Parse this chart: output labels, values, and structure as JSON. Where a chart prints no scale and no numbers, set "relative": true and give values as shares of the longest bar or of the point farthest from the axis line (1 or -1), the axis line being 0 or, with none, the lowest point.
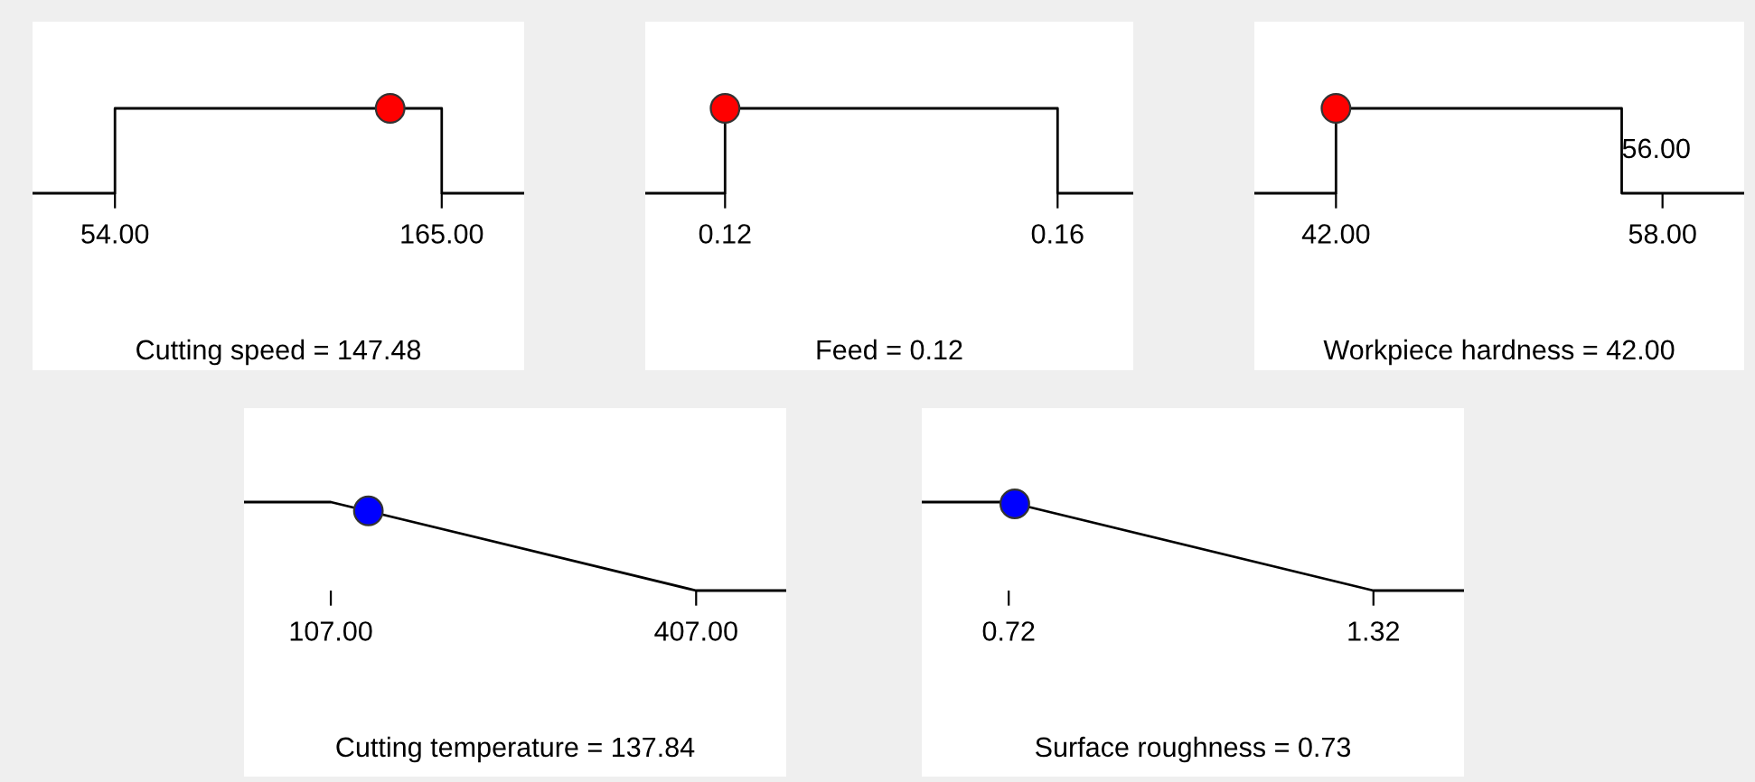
{
  "chart_data": [
    {
      "type": "line",
      "relative": true,
      "xlabel": "Cutting speed = 147.48",
      "xlim": [
        26,
        193
      ],
      "xticks": [
        {
          "value": 54,
          "label": "54.00"
        },
        {
          "value": 165,
          "label": "165.00"
        }
      ],
      "series": [
        {
          "color": "#000000",
          "x": [
            26,
            54,
            54,
            165,
            165,
            193
          ],
          "values": [
            0,
            0,
            1,
            1,
            0,
            0
          ]
        },
        {
          "type": "scatter",
          "marker": "circle",
          "color": "#ff0000",
          "x": [
            147.48
          ],
          "values": [
            1
          ]
        }
      ]
    },
    {
      "type": "line",
      "relative": true,
      "xlabel": "Feed = 0.12",
      "xlim": [
        0.1104,
        0.1691
      ],
      "xticks": [
        {
          "value": 0.12,
          "label": "0.12"
        },
        {
          "value": 0.16,
          "label": "0.16"
        }
      ],
      "series": [
        {
          "color": "#000000",
          "x": [
            0.1104,
            0.12,
            0.12,
            0.16,
            0.16,
            0.1691
          ],
          "values": [
            0,
            0,
            1,
            1,
            0,
            0
          ]
        },
        {
          "type": "scatter",
          "marker": "circle",
          "color": "#ff0000",
          "x": [
            0.12
          ],
          "values": [
            1
          ]
        }
      ]
    },
    {
      "type": "line",
      "relative": true,
      "xlabel": "Workpiece hardness = 42.00",
      "xlim": [
        38,
        62
      ],
      "xticks": [
        {
          "value": 42,
          "label": "42.00"
        },
        {
          "value": 58,
          "label": "58.00"
        }
      ],
      "annotations": [
        {
          "text": "56.00",
          "x": 56,
          "y": 0.5
        }
      ],
      "series": [
        {
          "color": "#000000",
          "x": [
            38,
            42,
            42,
            56,
            56,
            62
          ],
          "values": [
            0,
            0,
            1,
            1,
            0,
            0
          ]
        },
        {
          "type": "scatter",
          "marker": "circle",
          "color": "#ff0000",
          "x": [
            42
          ],
          "values": [
            1
          ]
        }
      ]
    },
    {
      "type": "line",
      "relative": true,
      "xlabel": "Cutting temperature = 137.84",
      "xlim": [
        35.7,
        481
      ],
      "xticks": [
        {
          "value": 107,
          "label": "107.00"
        },
        {
          "value": 407,
          "label": "407.00"
        }
      ],
      "series": [
        {
          "color": "#000000",
          "x": [
            35.7,
            107,
            407,
            481
          ],
          "values": [
            1,
            1,
            0,
            0
          ]
        },
        {
          "type": "scatter",
          "marker": "circle",
          "color": "#0000ff",
          "x": [
            137.84
          ],
          "values": [
            0.9
          ]
        }
      ]
    },
    {
      "type": "line",
      "relative": true,
      "xlabel": "Surface roughness = 0.73",
      "xlim": [
        0.577,
        1.469
      ],
      "xticks": [
        {
          "value": 0.72,
          "label": "0.72"
        },
        {
          "value": 1.32,
          "label": "1.32"
        }
      ],
      "series": [
        {
          "color": "#000000",
          "x": [
            0.577,
            0.72,
            1.32,
            1.469
          ],
          "values": [
            1,
            1,
            0,
            0
          ]
        },
        {
          "type": "scatter",
          "marker": "circle",
          "color": "#0000ff",
          "x": [
            0.73
          ],
          "values": [
            0.98
          ]
        }
      ]
    }
  ]
}
